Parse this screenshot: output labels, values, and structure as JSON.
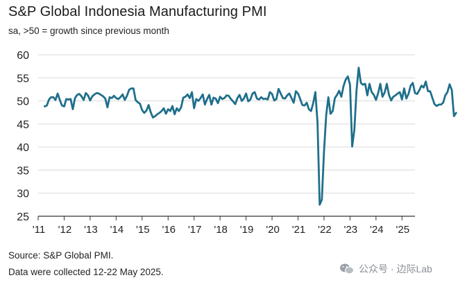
{
  "header": {
    "title": "S&P Global Indonesia Manufacturing PMI",
    "subtitle": "sa, >50 = growth since previous month"
  },
  "footer": {
    "source": "Source: S&P Global PMI.",
    "collected": "Data were collected 12-22 May 2025."
  },
  "watermark": {
    "text": "公众号 · 边际Lab",
    "icon": "wechat-icon"
  },
  "colors": {
    "line": "#1f6f8b",
    "grid": "#d9d9d9",
    "axis": "#333333"
  },
  "chart_data": {
    "type": "line",
    "title": "S&P Global Indonesia Manufacturing PMI",
    "subtitle": "sa, >50 = growth since previous month",
    "xlabel": "",
    "ylabel": "",
    "ylim": [
      25,
      60
    ],
    "yticks": [
      25,
      30,
      35,
      40,
      45,
      50,
      55,
      60
    ],
    "xlim": [
      2011,
      2025.5
    ],
    "xticks": [
      {
        "pos": 2011,
        "label": "'11"
      },
      {
        "pos": 2012,
        "label": "'12"
      },
      {
        "pos": 2013,
        "label": "'13"
      },
      {
        "pos": 2014,
        "label": "'14"
      },
      {
        "pos": 2015,
        "label": "'15"
      },
      {
        "pos": 2016,
        "label": "'16"
      },
      {
        "pos": 2017,
        "label": "'17"
      },
      {
        "pos": 2018,
        "label": "'18"
      },
      {
        "pos": 2019,
        "label": "'19"
      },
      {
        "pos": 2020,
        "label": "'20"
      },
      {
        "pos": 2021,
        "label": "'21"
      },
      {
        "pos": 2022,
        "label": "'22"
      },
      {
        "pos": 2023,
        "label": "'23"
      },
      {
        "pos": 2024,
        "label": "'24"
      },
      {
        "pos": 2025,
        "label": "'25"
      }
    ],
    "grid": "horizontal",
    "legend": "none",
    "series": [
      {
        "start": "2011-04",
        "values": [
          48.8,
          49.0,
          50.3,
          50.8,
          50.8,
          50.2,
          51.6,
          50.2,
          49.0,
          48.8,
          50.4,
          50.3,
          50.4,
          48.2,
          50.6,
          51.3,
          51.5,
          51.0,
          50.2,
          51.7,
          51.2,
          50.1,
          51.0,
          51.4,
          51.7,
          51.6,
          51.3,
          51.0,
          50.5,
          48.6,
          50.8,
          50.6,
          51.1,
          50.6,
          50.4,
          50.8,
          51.4,
          50.2,
          51.1,
          52.4,
          52.7,
          52.7,
          50.2,
          49.7,
          49.4,
          48.0,
          47.4,
          47.9,
          49.1,
          47.5,
          46.4,
          46.7,
          47.1,
          47.4,
          47.8,
          48.4,
          47.2,
          48.2,
          47.8,
          48.9,
          47.1,
          48.4,
          47.8,
          48.6,
          50.7,
          50.9,
          51.4,
          50.6,
          51.9,
          48.4,
          50.4,
          50.0,
          50.6,
          51.4,
          49.2,
          50.4,
          51.3,
          49.2,
          50.7,
          50.5,
          49.5,
          50.9,
          50.4,
          50.6,
          51.2,
          51.1,
          50.4,
          49.9,
          49.3,
          50.6,
          51.3,
          50.0,
          50.5,
          51.6,
          49.9,
          50.3,
          51.6,
          51.9,
          50.5,
          50.3,
          50.8,
          50.4,
          50.5,
          50.3,
          51.9,
          51.5,
          50.1,
          50.4,
          52.6,
          51.6,
          50.6,
          50.5,
          51.2,
          51.6,
          50.6,
          49.6,
          52.1,
          51.6,
          50.4,
          49.1,
          49.0,
          49.6,
          48.2,
          47.8,
          49.5,
          51.9,
          45.3,
          27.5,
          28.6,
          39.1,
          46.9,
          50.8,
          47.2,
          47.8,
          50.6,
          51.3,
          52.2,
          50.9,
          53.2,
          54.6,
          55.3,
          53.5,
          40.1,
          43.7,
          52.2,
          57.2,
          53.9,
          53.5,
          53.7,
          51.2,
          53.7,
          51.9,
          51.3,
          50.2,
          51.7,
          53.7,
          50.9,
          51.8,
          53.7,
          51.3,
          50.1,
          50.9,
          51.2,
          51.6,
          51.9,
          50.3,
          52.7,
          50.5,
          51.5,
          53.3,
          53.9,
          51.7,
          51.5,
          52.3,
          53.3,
          52.9,
          54.2,
          52.1,
          52.1,
          50.7,
          49.3,
          48.9,
          49.2,
          49.2,
          49.6,
          51.2,
          51.9,
          53.6,
          52.4,
          46.7,
          47.4
        ]
      }
    ]
  }
}
